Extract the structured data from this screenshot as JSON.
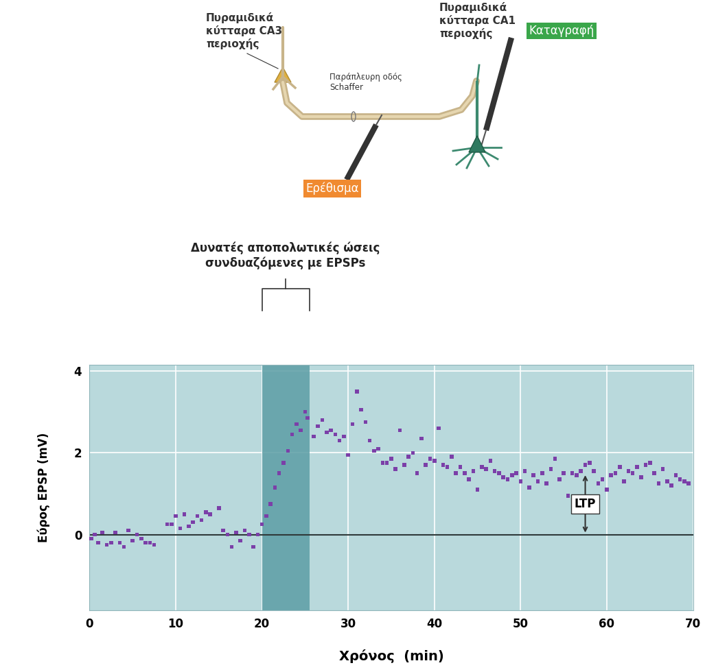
{
  "diagram": {
    "ca3_label": "Πυραμιδικά\nκύτταρα CA3\nπεριοχής",
    "schaffer_label": "Παράπλευρη οδός\nSchaffer",
    "ca1_label": "Πυραμιδικά\nκύτταρα CA1\nπεριοχής",
    "record_label": "Καταγραφή",
    "stimulus_label": "Ερέθισμα"
  },
  "chart_data": {
    "type": "scatter",
    "bracket_label": "Δυνατές αποπολωτικές ώσεις\nσυνδυαζόμενες με EPSPs",
    "shaded_range": [
      20,
      25.5
    ],
    "xlabel": "Χρόνος  (min)",
    "ylabel": "Εύρος EPSP (mV)",
    "color": "#7b3fa8",
    "marker": "square",
    "grid": true,
    "hline": 0,
    "annotation": {
      "text": "LTP",
      "x": 57.5,
      "y": [
        0,
        1.5
      ]
    },
    "xlim": [
      0,
      70
    ],
    "ylim": [
      -1.85,
      4.15
    ],
    "xticks": [
      0,
      10,
      20,
      30,
      40,
      50,
      60,
      70
    ],
    "yticks": [
      0,
      2,
      4
    ],
    "x": [
      0.2,
      0.6,
      1,
      1.5,
      2,
      2.5,
      3,
      3.5,
      4,
      4.5,
      5,
      5.5,
      6,
      6.5,
      7,
      7.5,
      9,
      9.5,
      10,
      10.5,
      11,
      11.5,
      12,
      12.5,
      13,
      13.5,
      14,
      15,
      15.5,
      16,
      16.5,
      17,
      17.5,
      18,
      18.5,
      19,
      19.5,
      20,
      20.5,
      21,
      21.5,
      22,
      22.5,
      23,
      23.5,
      24,
      24.5,
      25,
      25.3,
      26,
      26.5,
      27,
      27.5,
      28,
      28.5,
      29,
      29.5,
      30,
      30.5,
      31,
      31.5,
      32,
      32.5,
      33,
      33.5,
      34,
      34.5,
      35,
      35.5,
      36,
      36.5,
      37,
      37.5,
      38,
      38.5,
      39,
      39.5,
      40,
      40.5,
      41,
      41.5,
      42,
      42.5,
      43,
      43.5,
      44,
      44.5,
      45,
      45.5,
      46,
      46.5,
      47,
      47.5,
      48,
      48.5,
      49,
      49.5,
      50,
      50.5,
      51,
      51.5,
      52,
      52.5,
      53,
      53.5,
      54,
      54.5,
      55,
      55.5,
      56,
      56.5,
      57,
      57.5,
      58,
      58.5,
      59,
      59.5,
      60,
      60.5,
      61,
      61.5,
      62,
      62.5,
      63,
      63.5,
      64,
      64.5,
      65,
      65.5,
      66,
      66.5,
      67,
      67.5,
      68,
      68.5,
      69,
      69.5
    ],
    "values": [
      -0.1,
      0.0,
      -0.2,
      0.05,
      -0.25,
      -0.2,
      0.05,
      -0.2,
      -0.3,
      0.1,
      -0.15,
      0.0,
      -0.1,
      -0.2,
      -0.2,
      -0.25,
      0.25,
      0.25,
      0.45,
      0.15,
      0.5,
      0.2,
      0.3,
      0.45,
      0.35,
      0.55,
      0.5,
      0.65,
      0.1,
      0.0,
      -0.3,
      0.05,
      -0.15,
      0.1,
      0.0,
      -0.3,
      0.0,
      0.25,
      0.45,
      0.75,
      1.15,
      1.5,
      1.75,
      2.05,
      2.45,
      2.7,
      2.55,
      3.0,
      2.85,
      2.4,
      2.65,
      2.8,
      2.5,
      2.55,
      2.45,
      2.3,
      2.4,
      1.95,
      2.7,
      3.5,
      3.05,
      2.75,
      2.3,
      2.05,
      2.1,
      1.75,
      1.75,
      1.85,
      1.6,
      2.55,
      1.7,
      1.9,
      2.0,
      1.5,
      2.35,
      1.7,
      1.85,
      1.8,
      2.6,
      1.7,
      1.65,
      1.9,
      1.5,
      1.65,
      1.5,
      1.35,
      1.55,
      1.1,
      1.65,
      1.6,
      1.8,
      1.55,
      1.5,
      1.4,
      1.35,
      1.45,
      1.5,
      1.3,
      1.55,
      1.15,
      1.45,
      1.3,
      1.5,
      1.25,
      1.6,
      1.85,
      1.35,
      1.5,
      0.95,
      1.5,
      1.45,
      1.55,
      1.7,
      1.75,
      1.55,
      1.25,
      1.35,
      1.1,
      1.45,
      1.5,
      1.65,
      1.3,
      1.55,
      1.5,
      1.65,
      1.4,
      1.7,
      1.75,
      1.5,
      1.25,
      1.6,
      1.3,
      1.2,
      1.45,
      1.35,
      1.3,
      1.25
    ]
  }
}
